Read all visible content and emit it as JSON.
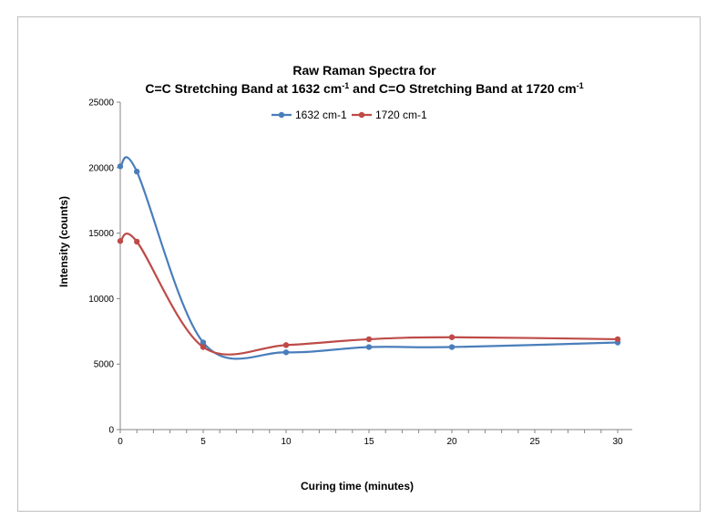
{
  "chart_data": {
    "type": "line",
    "title_line1": "Raw Raman Spectra for",
    "title_line2": {
      "p1": "C=C Stretching Band at 1632 cm",
      "sup1": "-1",
      "p2": " and C=O Stretching Band at 1720 cm",
      "sup2": "-1"
    },
    "xlabel": "Curing time (minutes)",
    "ylabel": "Intensity (counts)",
    "xlim": [
      0,
      30
    ],
    "ylim": [
      0,
      25000
    ],
    "x_ticks": [
      "0",
      "5",
      "10",
      "15",
      "20",
      "25",
      "30"
    ],
    "y_ticks": [
      "0",
      "5000",
      "10000",
      "15000",
      "20000",
      "25000"
    ],
    "grid": false,
    "smooth": true,
    "legend_position": "top",
    "series": [
      {
        "name": "1632 cm-1",
        "color": "#4a7ebb",
        "x": [
          0,
          1,
          5,
          10,
          15,
          20,
          30
        ],
        "y": [
          20100,
          19700,
          6650,
          5900,
          6300,
          6300,
          6650
        ]
      },
      {
        "name": "1720 cm-1",
        "color": "#be4b48",
        "x": [
          0,
          1,
          5,
          10,
          15,
          20,
          30
        ],
        "y": [
          14400,
          14350,
          6300,
          6450,
          6900,
          7050,
          6900
        ]
      }
    ]
  }
}
